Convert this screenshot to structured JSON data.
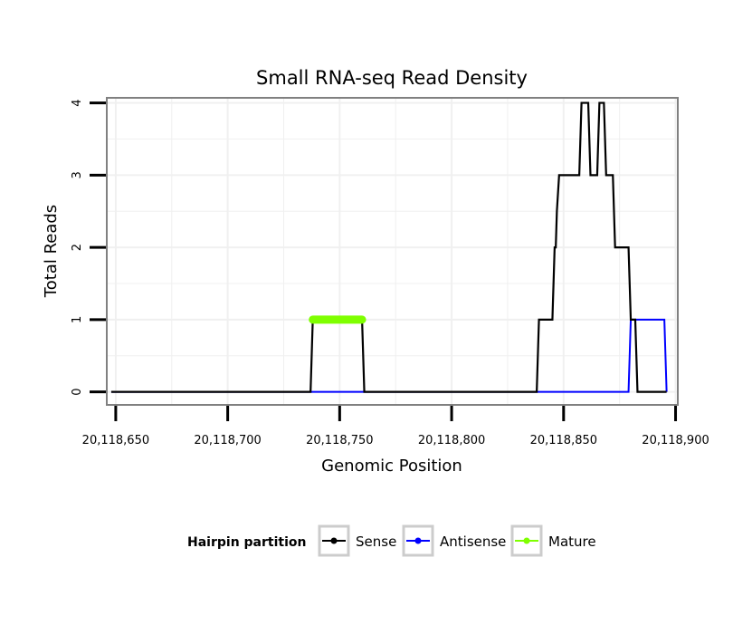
{
  "chart_data": {
    "type": "line",
    "title": "Small RNA-seq Read Density",
    "xlabel": "Genomic Position",
    "ylabel": "Total Reads",
    "xlim": [
      20118646,
      20118901
    ],
    "ylim": [
      -0.18,
      4.07
    ],
    "x_ticks": [
      20118650,
      20118700,
      20118750,
      20118800,
      20118850,
      20118900
    ],
    "x_tick_labels": [
      "20,118,650",
      "20,118,700",
      "20,118,750",
      "20,118,800",
      "20,118,850",
      "20,118,900"
    ],
    "y_ticks": [
      0,
      1,
      2,
      3,
      4
    ],
    "y_tick_labels": [
      "0",
      "1",
      "2",
      "3",
      "4"
    ],
    "grid": true,
    "legend": {
      "title": "Hairpin partition",
      "placement": "bottom",
      "entries": [
        "Sense",
        "Antisense",
        "Mature"
      ]
    },
    "series": [
      {
        "name": "Sense",
        "color": "#000000",
        "x": [
          20118648,
          20118737,
          20118738,
          20118760,
          20118761,
          20118838,
          20118839,
          20118845,
          20118846,
          20118846.5,
          20118847,
          20118848,
          20118857,
          20118858,
          20118861,
          20118862,
          20118865,
          20118866,
          20118868,
          20118869,
          20118872,
          20118873,
          20118879,
          20118880,
          20118882,
          20118883,
          20118896
        ],
        "y": [
          0,
          0,
          1,
          1,
          0,
          0,
          1,
          1,
          2,
          2,
          2.5,
          3,
          3,
          4,
          4,
          3,
          3,
          4,
          4,
          3,
          3,
          2,
          2,
          1,
          1,
          0,
          0
        ]
      },
      {
        "name": "Antisense",
        "color": "#0000ff",
        "x": [
          20118648,
          20118879,
          20118880,
          20118895,
          20118896
        ],
        "y": [
          0,
          0,
          1,
          1,
          0
        ]
      },
      {
        "name": "Mature",
        "color": "#7fff00",
        "x": [
          20118738,
          20118760
        ],
        "y": [
          1,
          1
        ]
      }
    ]
  }
}
